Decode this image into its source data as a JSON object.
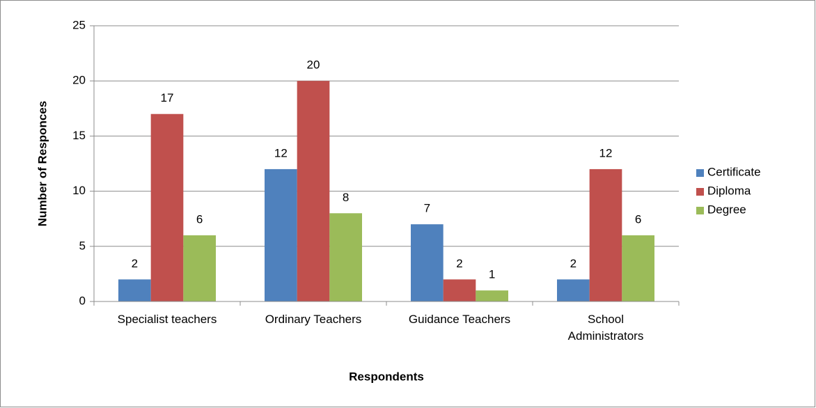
{
  "chart_data": {
    "type": "bar",
    "x_label": "Respondents",
    "y_label": "Number of Responces",
    "categories": [
      "Specialist teachers",
      "Ordinary Teachers",
      "Guidance Teachers",
      "School\nAdministrators"
    ],
    "series": [
      {
        "name": "Certificate",
        "color": "#4f81bd",
        "values": [
          2,
          12,
          7,
          2
        ]
      },
      {
        "name": "Diploma",
        "color": "#c0504d",
        "values": [
          17,
          20,
          2,
          12
        ]
      },
      {
        "name": "Degree",
        "color": "#9bbb59",
        "values": [
          6,
          8,
          1,
          6
        ]
      }
    ],
    "ylim": [
      0,
      25
    ],
    "yticks": [
      0,
      5,
      10,
      15,
      20,
      25
    ],
    "grid": true,
    "legend": "right"
  }
}
